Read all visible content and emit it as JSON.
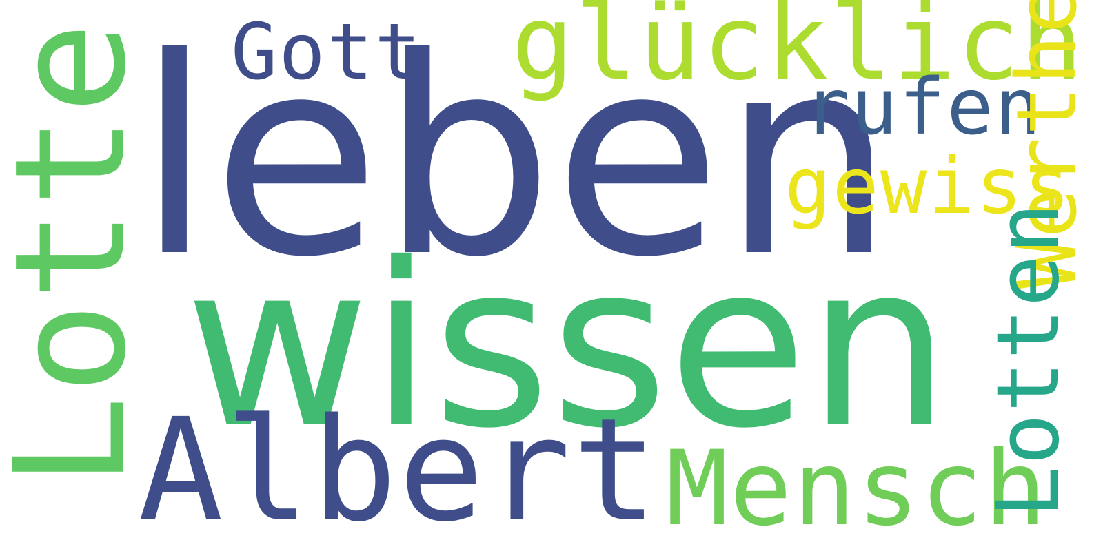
{
  "words": {
    "leben": {
      "text": "leben",
      "color": "#3f4d8a"
    },
    "wissen": {
      "text": "wissen",
      "color": "#41bb72"
    },
    "albert": {
      "text": "Albert",
      "color": "#3f4d8a"
    },
    "lotte": {
      "text": "Lotte",
      "color": "#5ec962"
    },
    "mensch": {
      "text": "Mensch",
      "color": "#6fcd58"
    },
    "gluecklich": {
      "text": "glücklich",
      "color": "#addc30"
    },
    "gott": {
      "text": "Gott",
      "color": "#3f4d8a"
    },
    "rufen": {
      "text": "rufen",
      "color": "#3b5f8a"
    },
    "gewiss": {
      "text": "gewiss",
      "color": "#ece51b"
    },
    "werther": {
      "text": "Werther",
      "color": "#e8e419"
    },
    "lotten": {
      "text": "Lotten",
      "color": "#26a78a"
    }
  }
}
